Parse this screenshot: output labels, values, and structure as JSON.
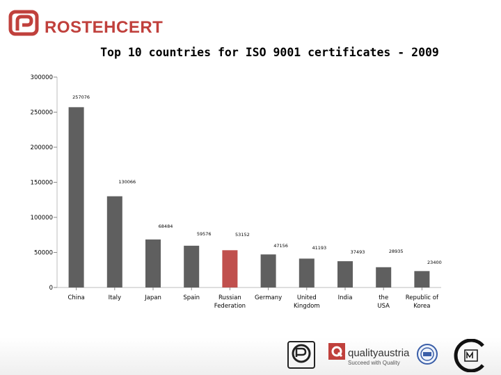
{
  "header": {
    "brand_name": "ROSTEHCERT",
    "brand_color": "#c0403c"
  },
  "chart_data": {
    "type": "bar",
    "title": "Top 10 countries for ISO 9001 certificates - 2009",
    "xlabel": "",
    "ylabel": "",
    "ylim": [
      0,
      300000
    ],
    "yticks": [
      "0",
      "50000",
      "100000",
      "150000",
      "200000",
      "250000",
      "300000"
    ],
    "grid": false,
    "categories": [
      "China",
      "Italy",
      "Japan",
      "Spain",
      "Russian Federation",
      "Germany",
      "United Kingdom",
      "India",
      "the USA",
      "Republic of Korea"
    ],
    "values": [
      257076,
      130066,
      68484,
      59576,
      53152,
      47156,
      41193,
      37493,
      28935,
      23400
    ],
    "bar_color": "#5f5f5f",
    "highlight_color": "#c0504d",
    "highlight_category": "Russian Federation"
  },
  "footer": {
    "partners": [
      "rst-certification-mark-icon",
      "quality-austria-logo-icon",
      "round-certification-seal-icon",
      "c-certification-logo-icon"
    ],
    "quality_austria_name": "qualityaustria",
    "quality_austria_tagline": "Succeed with Quality"
  }
}
